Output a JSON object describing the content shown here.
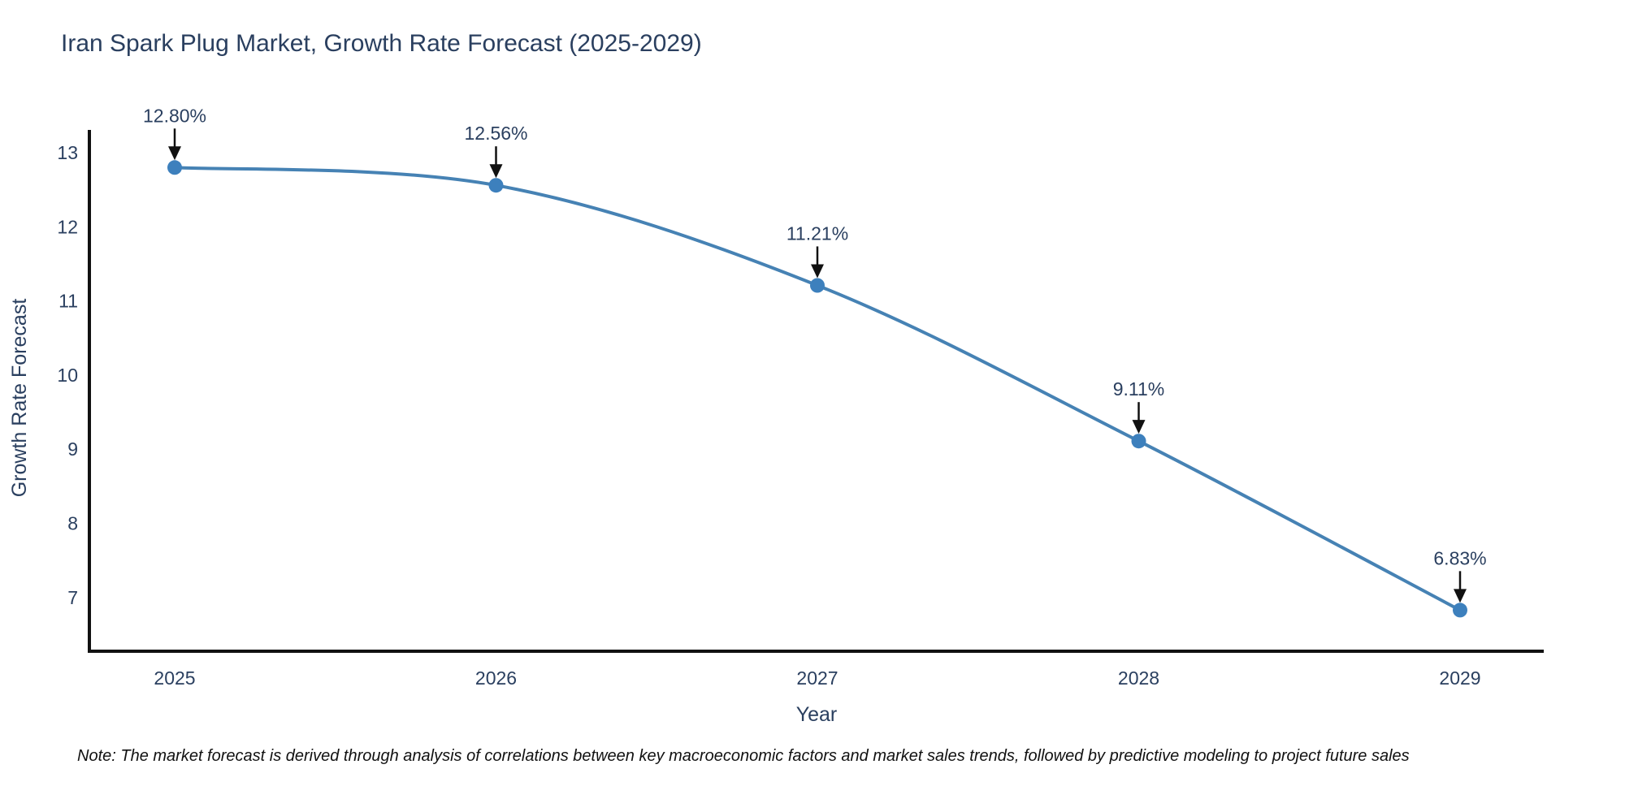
{
  "title": "Iran Spark Plug Market, Growth Rate Forecast (2025-2029)",
  "footnote": "Note: The market forecast is derived through analysis of correlations between key macroeconomic factors and market sales trends, followed by predictive modeling to project future sales",
  "chart_data": {
    "type": "line",
    "title": "Iran Spark Plug Market, Growth Rate Forecast (2025-2029)",
    "xlabel": "Year",
    "ylabel": "Growth Rate Forecast",
    "x": [
      2025,
      2026,
      2027,
      2028,
      2029
    ],
    "values": [
      12.8,
      12.56,
      11.21,
      9.11,
      6.83
    ],
    "point_labels": [
      "12.80%",
      "12.56%",
      "11.21%",
      "9.11%",
      "6.83%"
    ],
    "xtick_labels": [
      "2025",
      "2026",
      "2027",
      "2028",
      "2029"
    ],
    "ytick_values": [
      7,
      8,
      9,
      10,
      11,
      12,
      13
    ],
    "ylim": [
      6.28,
      13.31
    ],
    "xlim": [
      2024.73,
      2029.26
    ],
    "grid": false,
    "legend": "none",
    "line_shape": "spline",
    "annotations": "value labels with down arrows onto each point",
    "colors": {
      "line": "#4682b4",
      "marker": "#3d80bd",
      "axis": "#111111",
      "text": "#2a3f5f",
      "note_text": "#111111",
      "background": "#ffffff"
    }
  }
}
